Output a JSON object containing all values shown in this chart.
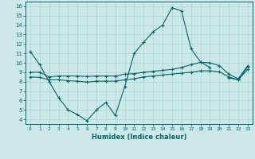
{
  "xlabel": "Humidex (Indice chaleur)",
  "bg_color": "#cce8e8",
  "line_color": "#006666",
  "grid_color": "#aad4d4",
  "xlim": [
    -0.5,
    23.5
  ],
  "ylim": [
    3.5,
    16.5
  ],
  "xticks": [
    0,
    1,
    2,
    3,
    4,
    5,
    6,
    7,
    8,
    9,
    10,
    11,
    12,
    13,
    14,
    15,
    16,
    17,
    18,
    19,
    20,
    21,
    22,
    23
  ],
  "yticks": [
    4,
    5,
    6,
    7,
    8,
    9,
    10,
    11,
    12,
    13,
    14,
    15,
    16
  ],
  "line1_x": [
    0,
    1,
    2,
    3,
    4,
    5,
    6,
    7,
    8,
    9,
    10,
    11,
    12,
    13,
    14,
    15,
    16,
    17,
    18,
    19,
    20,
    21,
    22,
    23
  ],
  "line1_y": [
    11.2,
    9.8,
    8.0,
    6.3,
    5.0,
    4.5,
    3.85,
    5.0,
    5.8,
    4.4,
    7.5,
    11.0,
    12.2,
    13.3,
    14.0,
    15.85,
    15.5,
    11.5,
    10.1,
    9.5,
    null,
    8.4,
    8.2,
    9.6
  ],
  "line2_x": [
    0,
    1,
    2,
    3,
    4,
    5,
    6,
    7,
    8,
    9,
    10,
    11,
    12,
    13,
    14,
    15,
    16,
    17,
    18,
    19,
    20,
    21,
    22,
    23
  ],
  "line2_y": [
    9.0,
    9.0,
    8.5,
    8.6,
    8.6,
    8.6,
    8.55,
    8.6,
    8.6,
    8.6,
    8.8,
    8.85,
    9.0,
    9.1,
    9.2,
    9.3,
    9.5,
    9.8,
    10.05,
    10.0,
    9.7,
    8.8,
    8.3,
    9.7
  ],
  "line3_x": [
    0,
    1,
    2,
    3,
    4,
    5,
    6,
    7,
    8,
    9,
    10,
    11,
    12,
    13,
    14,
    15,
    16,
    17,
    18,
    19,
    20,
    21,
    22,
    23
  ],
  "line3_y": [
    8.5,
    8.45,
    8.2,
    8.2,
    8.1,
    8.05,
    7.95,
    8.05,
    8.05,
    8.05,
    8.2,
    8.3,
    8.5,
    8.6,
    8.7,
    8.8,
    8.9,
    9.0,
    9.15,
    9.15,
    9.05,
    8.5,
    8.2,
    9.3
  ]
}
